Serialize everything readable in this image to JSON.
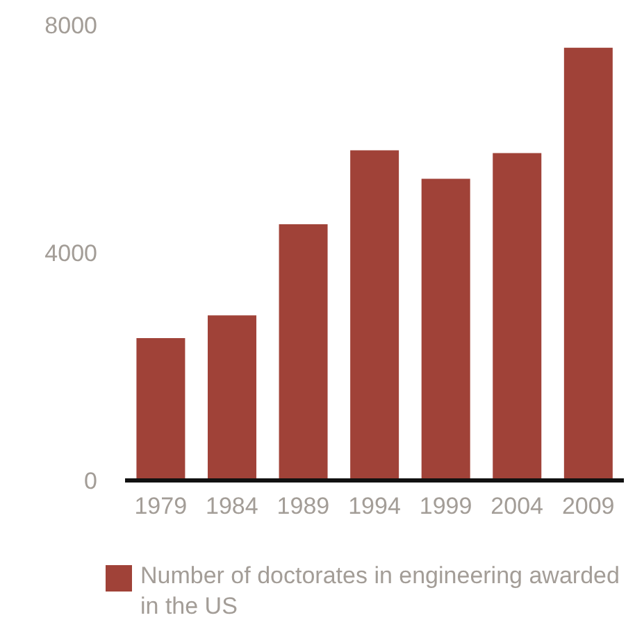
{
  "chart_data": {
    "type": "bar",
    "categories": [
      "1979",
      "1984",
      "1989",
      "1994",
      "1999",
      "2004",
      "2009"
    ],
    "series": [
      {
        "name": "Number of doctorates in engineering awarded in the US",
        "color": "#a04238",
        "values": [
          2500,
          2900,
          4500,
          5800,
          5300,
          5750,
          7600
        ]
      }
    ],
    "ylim": [
      0,
      8000
    ],
    "yticks": [
      0,
      4000,
      8000
    ],
    "grid": false,
    "legend": "bottom left"
  }
}
